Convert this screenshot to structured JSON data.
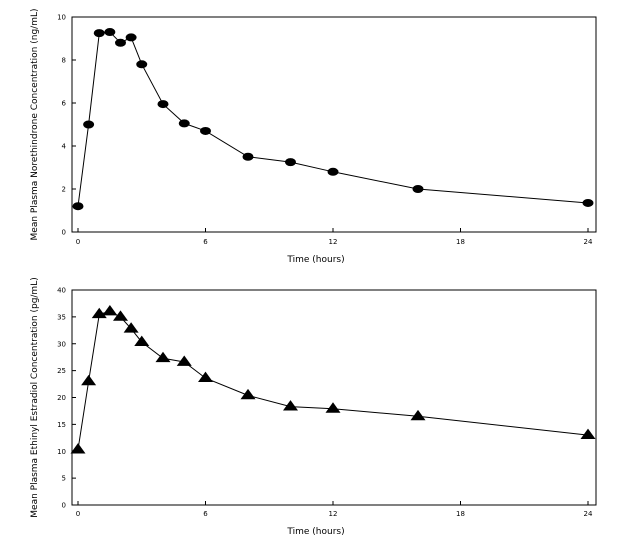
{
  "chart_data": [
    {
      "type": "line",
      "title": "",
      "xlabel": "Time (hours)",
      "ylabel": "Mean Plasma Norethindrone Concentration (ng/mL)",
      "xlim": [
        0,
        24
      ],
      "ylim": [
        0,
        10
      ],
      "xticks": [
        "0",
        "6",
        "12",
        "18",
        "24"
      ],
      "yticks": [
        "0",
        "2",
        "4",
        "6",
        "8",
        "10"
      ],
      "grid": false,
      "marker": "circle",
      "series": [
        {
          "x": [
            0,
            0.5,
            1,
            1.5,
            2,
            2.5,
            3,
            4,
            5,
            6,
            8,
            10,
            12,
            16,
            24
          ],
          "values": [
            1.2,
            5.0,
            9.25,
            9.3,
            8.8,
            9.05,
            7.8,
            5.95,
            5.05,
            4.7,
            3.5,
            3.25,
            2.8,
            2.0,
            1.35
          ]
        }
      ]
    },
    {
      "type": "line",
      "title": "",
      "xlabel": "Time (hours)",
      "ylabel": "Mean Plasma Ethinyl Estradiol Concentration (pg/mL)",
      "xlim": [
        0,
        24
      ],
      "ylim": [
        0,
        40
      ],
      "xticks": [
        "0",
        "6",
        "12",
        "18",
        "24"
      ],
      "yticks": [
        "0",
        "5",
        "10",
        "15",
        "20",
        "25",
        "30",
        "35",
        "40"
      ],
      "grid": false,
      "marker": "triangle",
      "series": [
        {
          "x": [
            0,
            0.5,
            1,
            1.5,
            2,
            2.5,
            3,
            4,
            5,
            6,
            8,
            10,
            12,
            16,
            24
          ],
          "values": [
            10.3,
            23.0,
            35.5,
            36.0,
            35.0,
            32.8,
            30.3,
            27.3,
            26.6,
            23.6,
            20.4,
            18.3,
            17.9,
            16.5,
            13.0
          ]
        }
      ]
    }
  ]
}
